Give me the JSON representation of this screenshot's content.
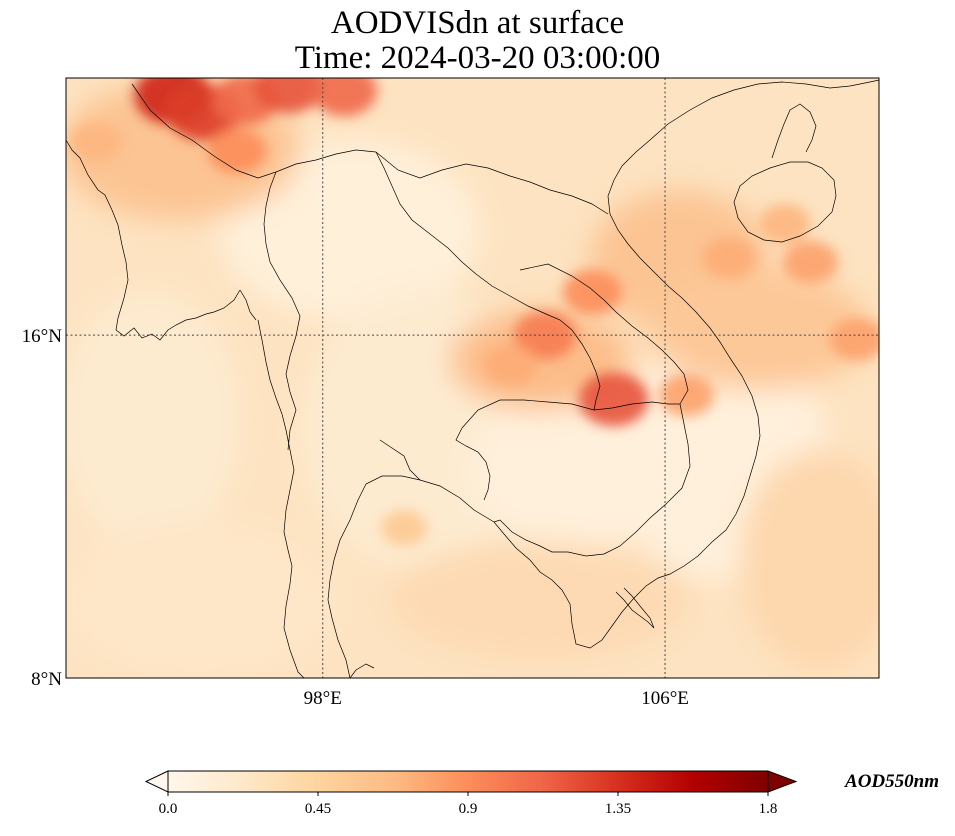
{
  "title": "AODVISdn at surface",
  "subtitle": "Time: 2024-03-20 03:00:00",
  "map": {
    "extent_lon": [
      92,
      111
    ],
    "extent_lat": [
      8,
      22
    ],
    "gridlines": {
      "lon": [
        98,
        106
      ],
      "lat": [
        8,
        16
      ],
      "lon_labels": [
        "98°E",
        "106°E"
      ],
      "lat_labels": [
        "16°N",
        "8°N"
      ]
    },
    "colormap": "OrRd",
    "aerosol_hotspots": [
      {
        "lon": 94.5,
        "lat": 21.6,
        "value": 1.4
      },
      {
        "lon": 95.2,
        "lat": 21.2,
        "value": 1.3
      },
      {
        "lon": 96.2,
        "lat": 21.5,
        "value": 1.1
      },
      {
        "lon": 97.2,
        "lat": 21.8,
        "value": 1.2
      },
      {
        "lon": 98.5,
        "lat": 21.7,
        "value": 1.1
      },
      {
        "lon": 96.0,
        "lat": 20.3,
        "value": 0.9
      },
      {
        "lon": 103.2,
        "lat": 16.0,
        "value": 1.0
      },
      {
        "lon": 104.3,
        "lat": 17.0,
        "value": 0.9
      },
      {
        "lon": 104.8,
        "lat": 14.5,
        "value": 1.2
      },
      {
        "lon": 102.4,
        "lat": 15.3,
        "value": 0.75
      },
      {
        "lon": 106.5,
        "lat": 14.6,
        "value": 0.8
      },
      {
        "lon": 107.5,
        "lat": 17.8,
        "value": 0.75
      },
      {
        "lon": 109.4,
        "lat": 17.7,
        "value": 0.8
      },
      {
        "lon": 110.5,
        "lat": 15.9,
        "value": 0.8
      },
      {
        "lon": 108.8,
        "lat": 18.6,
        "value": 0.7
      },
      {
        "lon": 92.7,
        "lat": 20.5,
        "value": 0.7
      },
      {
        "lon": 99.9,
        "lat": 11.5,
        "value": 0.55
      }
    ]
  },
  "colorbar": {
    "ticks": [
      "0.0",
      "0.45",
      "0.9",
      "1.35",
      "1.8"
    ],
    "min": 0.0,
    "max": 1.8,
    "label": "AOD550nm",
    "colors": [
      "#fff7ec",
      "#fee8c8",
      "#fdd49e",
      "#fdbb84",
      "#fc8d59",
      "#ef6548",
      "#d7301f",
      "#b30000",
      "#7f0000"
    ]
  }
}
